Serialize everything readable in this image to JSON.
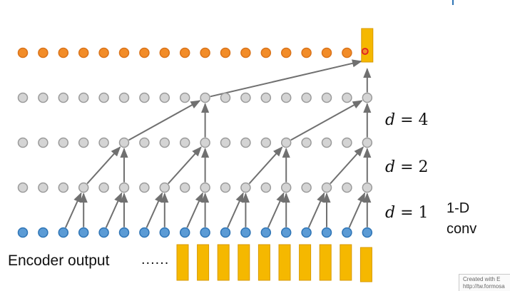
{
  "labels": {
    "d4": "d = 4",
    "d2": "d = 2",
    "d1": "d = 1",
    "conv_line1": "1-D",
    "conv_line2": "conv",
    "encoder": "Encoder output",
    "ellipsis": "......"
  },
  "watermark": {
    "line1": "Created with E",
    "line2": "http://tw.formosa"
  },
  "colors": {
    "output_node": "#f28c28",
    "output_node_border": "#d9731a",
    "hidden_node": "#d4d4d4",
    "hidden_node_border": "#9a9a9a",
    "input_node": "#5b9bd5",
    "input_node_border": "#2e74b5",
    "bar": "#f5b800",
    "bar_border": "#d99a00",
    "arrow": "#707070",
    "highlight": "#e02020"
  },
  "diagram": {
    "node_count": 18,
    "layers": [
      "output",
      "hidden_d4",
      "hidden_d2",
      "hidden_d1",
      "input"
    ],
    "dilations": [
      1,
      2,
      4
    ],
    "encoder_bar_count": 10
  }
}
